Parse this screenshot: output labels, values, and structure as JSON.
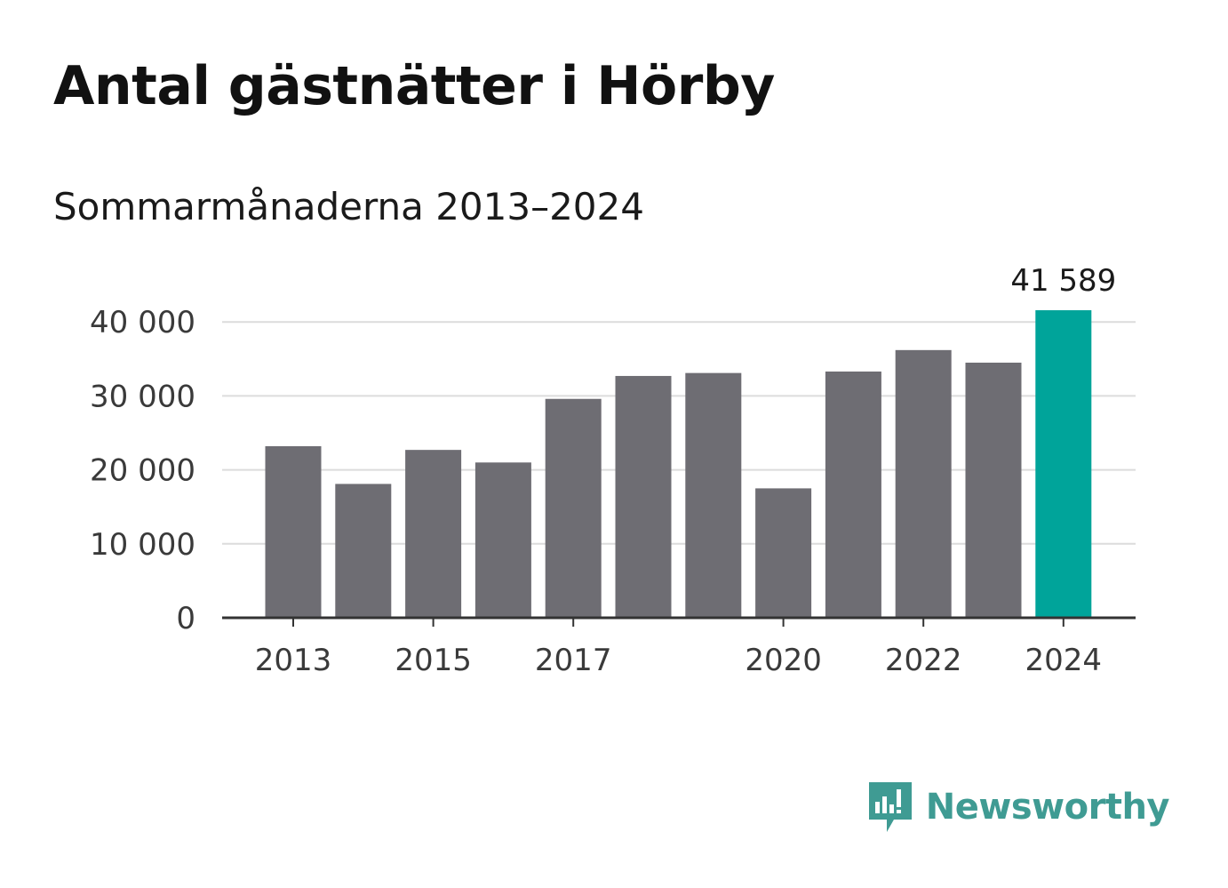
{
  "title": "Antal gästnätter i Hörby",
  "subtitle": "Sommarmånaderna 2013–2024",
  "brand": {
    "name": "Newsworthy",
    "color": "#3f9b93",
    "icon": "newsworthy-bars-icon"
  },
  "colors": {
    "bar": "#6e6d73",
    "highlight": "#00a49a",
    "grid": "#dcdcdc",
    "axis": "#333333"
  },
  "chart_data": {
    "type": "bar",
    "categories": [
      "2013",
      "2014",
      "2015",
      "2016",
      "2017",
      "2018",
      "2019",
      "2020",
      "2021",
      "2022",
      "2023",
      "2024"
    ],
    "values": [
      23200,
      18100,
      22700,
      21000,
      29600,
      32700,
      33100,
      17500,
      33300,
      36200,
      34500,
      41589
    ],
    "highlight_index": 11,
    "data_labels": [
      {
        "index": 11,
        "text": "41 589"
      }
    ],
    "x_tick_labels": [
      "2013",
      "2015",
      "2017",
      "2020",
      "2022",
      "2024"
    ],
    "y_ticks": [
      0,
      10000,
      20000,
      30000,
      40000
    ],
    "y_tick_labels": [
      "0",
      "10 000",
      "20 000",
      "30 000",
      "40 000"
    ],
    "ylim": [
      0,
      41589
    ],
    "grid": true,
    "xlabel": "",
    "ylabel": ""
  }
}
